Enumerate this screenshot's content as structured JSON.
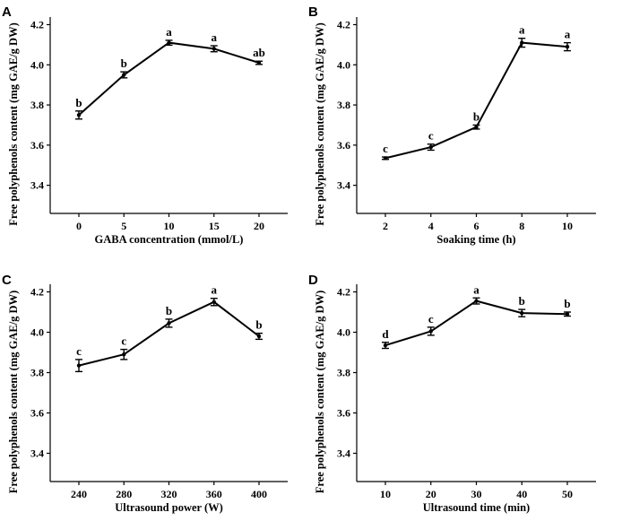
{
  "colors": {
    "line": "#000000",
    "background": "#ffffff"
  },
  "chart_data": [
    {
      "panel": "A",
      "type": "line",
      "xlabel": "GABA concentration (mmol/L)",
      "ylabel": "Free polyphenols content (mg GAE/g DW)",
      "x": [
        0,
        5,
        10,
        15,
        20
      ],
      "xtick_labels": [
        "0",
        "5",
        "10",
        "15",
        "20"
      ],
      "values": [
        3.75,
        3.95,
        4.11,
        4.08,
        4.01
      ],
      "errors": [
        0.02,
        0.015,
        0.012,
        0.015,
        0.008
      ],
      "labels": [
        "b",
        "b",
        "a",
        "a",
        "ab"
      ],
      "ylim": [
        3.26,
        4.22
      ],
      "yticks": [
        3.4,
        3.6,
        3.8,
        4.0,
        4.2
      ],
      "ytick_labels": [
        "3.4",
        "3.6",
        "3.8",
        "4.0",
        "4.2"
      ]
    },
    {
      "panel": "B",
      "type": "line",
      "xlabel": "Soaking time (h)",
      "ylabel": "Free polyphenols content (mg GAE/g DW)",
      "x": [
        2,
        4,
        6,
        8,
        10
      ],
      "xtick_labels": [
        "2",
        "4",
        "6",
        "8",
        "10"
      ],
      "values": [
        3.535,
        3.59,
        3.69,
        4.11,
        4.09
      ],
      "errors": [
        0.006,
        0.015,
        0.01,
        0.022,
        0.02
      ],
      "labels": [
        "c",
        "c",
        "b",
        "a",
        "a"
      ],
      "ylim": [
        3.26,
        4.22
      ],
      "yticks": [
        3.4,
        3.6,
        3.8,
        4.0,
        4.2
      ],
      "ytick_labels": [
        "3.4",
        "3.6",
        "3.8",
        "4.0",
        "4.2"
      ]
    },
    {
      "panel": "C",
      "type": "line",
      "xlabel": "Ultrasound power (W)",
      "ylabel": "Free polyphenols content (mg GAE/g DW)",
      "x": [
        240,
        280,
        320,
        360,
        400
      ],
      "xtick_labels": [
        "240",
        "280",
        "320",
        "360",
        "400"
      ],
      "values": [
        3.835,
        3.89,
        4.045,
        4.15,
        3.98
      ],
      "errors": [
        0.03,
        0.025,
        0.02,
        0.018,
        0.015
      ],
      "labels": [
        "c",
        "c",
        "b",
        "a",
        "b"
      ],
      "ylim": [
        3.26,
        4.22
      ],
      "yticks": [
        3.4,
        3.6,
        3.8,
        4.0,
        4.2
      ],
      "ytick_labels": [
        "3.4",
        "3.6",
        "3.8",
        "4.0",
        "4.2"
      ]
    },
    {
      "panel": "D",
      "type": "line",
      "xlabel": "Ultrasound time (min)",
      "ylabel": "Free polyphenols content (mg GAE/g DW)",
      "x": [
        10,
        20,
        30,
        40,
        50
      ],
      "xtick_labels": [
        "10",
        "20",
        "30",
        "40",
        "50"
      ],
      "values": [
        3.935,
        4.005,
        4.155,
        4.095,
        4.09
      ],
      "errors": [
        0.015,
        0.02,
        0.015,
        0.018,
        0.01
      ],
      "labels": [
        "d",
        "c",
        "a",
        "b",
        "b"
      ],
      "ylim": [
        3.26,
        4.22
      ],
      "yticks": [
        3.4,
        3.6,
        3.8,
        4.0,
        4.2
      ],
      "ytick_labels": [
        "3.4",
        "3.6",
        "3.8",
        "4.0",
        "4.2"
      ]
    }
  ]
}
